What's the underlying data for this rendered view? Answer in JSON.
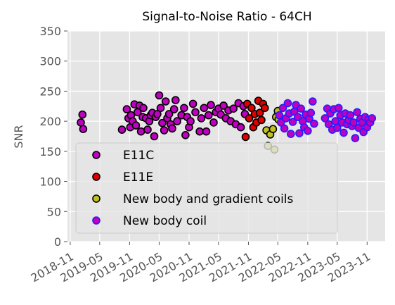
{
  "chart_data": {
    "type": "scatter",
    "title": "Signal-to-Noise Ratio - 64CH",
    "xlabel": "",
    "ylabel": "SNR",
    "ylim": [
      0,
      350
    ],
    "yticks": [
      0,
      50,
      100,
      150,
      200,
      250,
      300,
      350
    ],
    "xlim": [
      "2018-10-15",
      "2024-02-20"
    ],
    "xticks": [
      "2018-11",
      "2019-05",
      "2019-11",
      "2020-05",
      "2020-11",
      "2021-05",
      "2021-11",
      "2022-05",
      "2022-11",
      "2023-05",
      "2023-11"
    ],
    "grid": true,
    "legend_position": "lower-left",
    "background": "#e5e5e5",
    "series": [
      {
        "name": "E11C",
        "color": "#c000c0",
        "edge": "#000000",
        "points": [
          [
            "2019-01-05",
            198
          ],
          [
            "2019-01-15",
            211
          ],
          [
            "2019-01-20",
            187
          ],
          [
            "2019-09-15",
            186
          ],
          [
            "2019-10-15",
            220
          ],
          [
            "2019-10-25",
            205
          ],
          [
            "2019-11-05",
            190
          ],
          [
            "2019-11-10",
            210
          ],
          [
            "2019-11-20",
            200
          ],
          [
            "2019-12-01",
            228
          ],
          [
            "2019-12-10",
            193
          ],
          [
            "2019-12-20",
            215
          ],
          [
            "2020-01-01",
            226
          ],
          [
            "2020-01-10",
            183
          ],
          [
            "2020-01-20",
            207
          ],
          [
            "2020-01-25",
            222
          ],
          [
            "2020-02-10",
            205
          ],
          [
            "2020-02-20",
            186
          ],
          [
            "2020-03-01",
            200
          ],
          [
            "2020-03-10",
            210
          ],
          [
            "2020-03-20",
            214
          ],
          [
            "2020-04-01",
            175
          ],
          [
            "2020-04-10",
            207
          ],
          [
            "2020-04-20",
            212
          ],
          [
            "2020-05-01",
            243
          ],
          [
            "2020-05-10",
            222
          ],
          [
            "2020-05-20",
            197
          ],
          [
            "2020-06-01",
            185
          ],
          [
            "2020-06-10",
            233
          ],
          [
            "2020-06-20",
            205
          ],
          [
            "2020-07-01",
            212
          ],
          [
            "2020-07-10",
            195
          ],
          [
            "2020-07-20",
            188
          ],
          [
            "2020-08-01",
            220
          ],
          [
            "2020-08-10",
            235
          ],
          [
            "2020-08-20",
            200
          ],
          [
            "2020-09-15",
            210
          ],
          [
            "2020-10-01",
            222
          ],
          [
            "2020-10-10",
            177
          ],
          [
            "2020-10-20",
            207
          ],
          [
            "2020-11-01",
            190
          ],
          [
            "2020-11-10",
            200
          ],
          [
            "2020-11-25",
            229
          ],
          [
            "2020-12-10",
            215
          ],
          [
            "2021-01-05",
            183
          ],
          [
            "2021-01-15",
            205
          ],
          [
            "2021-02-01",
            222
          ],
          [
            "2021-02-15",
            183
          ],
          [
            "2021-03-01",
            210
          ],
          [
            "2021-03-15",
            227
          ],
          [
            "2021-04-01",
            198
          ],
          [
            "2021-04-15",
            215
          ],
          [
            "2021-05-01",
            221
          ],
          [
            "2021-05-15",
            211
          ],
          [
            "2021-06-01",
            226
          ],
          [
            "2021-06-15",
            205
          ],
          [
            "2021-07-01",
            218
          ],
          [
            "2021-07-15",
            200
          ],
          [
            "2021-08-01",
            221
          ],
          [
            "2021-08-15",
            195
          ],
          [
            "2021-09-01",
            230
          ],
          [
            "2021-09-15",
            190
          ],
          [
            "2021-10-01",
            225
          ],
          [
            "2021-10-10",
            212
          ]
        ]
      },
      {
        "name": "E11E",
        "color": "#e00000",
        "edge": "#000000",
        "points": [
          [
            "2021-10-15",
            174
          ],
          [
            "2021-10-25",
            229
          ],
          [
            "2021-11-05",
            205
          ],
          [
            "2021-11-20",
            222
          ],
          [
            "2021-12-01",
            190
          ],
          [
            "2021-12-10",
            212
          ],
          [
            "2021-12-20",
            198
          ],
          [
            "2022-01-01",
            234
          ],
          [
            "2022-01-10",
            214
          ],
          [
            "2022-01-20",
            202
          ],
          [
            "2022-01-30",
            229
          ],
          [
            "2022-02-10",
            222
          ]
        ]
      },
      {
        "name": "New body and gradient coils",
        "color": "#c0c020",
        "edge": "#000000",
        "points": [
          [
            "2022-02-20",
            185
          ],
          [
            "2022-03-01",
            159
          ],
          [
            "2022-03-15",
            178
          ],
          [
            "2022-04-01",
            187
          ],
          [
            "2022-04-10",
            153
          ],
          [
            "2022-04-20",
            207
          ],
          [
            "2022-05-01",
            217
          ],
          [
            "2022-05-05",
            203
          ]
        ]
      },
      {
        "name": "New body coil",
        "color": "#c000c0",
        "edge": "#2020ff",
        "points": [
          [
            "2022-05-10",
            210
          ],
          [
            "2022-05-20",
            198
          ],
          [
            "2022-06-01",
            222
          ],
          [
            "2022-06-10",
            188
          ],
          [
            "2022-06-20",
            205
          ],
          [
            "2022-07-01",
            230
          ],
          [
            "2022-07-10",
            213
          ],
          [
            "2022-07-20",
            179
          ],
          [
            "2022-08-01",
            199
          ],
          [
            "2022-08-10",
            216
          ],
          [
            "2022-08-20",
            227
          ],
          [
            "2022-09-01",
            207
          ],
          [
            "2022-09-10",
            180
          ],
          [
            "2022-09-20",
            221
          ],
          [
            "2022-10-01",
            200
          ],
          [
            "2022-10-10",
            190
          ],
          [
            "2022-10-20",
            211
          ],
          [
            "2022-11-01",
            184
          ],
          [
            "2022-11-10",
            204
          ],
          [
            "2022-11-20",
            214
          ],
          [
            "2022-12-01",
            233
          ],
          [
            "2022-12-10",
            196
          ],
          [
            "2023-02-15",
            205
          ],
          [
            "2023-03-01",
            221
          ],
          [
            "2023-03-10",
            195
          ],
          [
            "2023-03-20",
            213
          ],
          [
            "2023-04-01",
            186
          ],
          [
            "2023-04-10",
            220
          ],
          [
            "2023-04-20",
            200
          ],
          [
            "2023-05-01",
            189
          ],
          [
            "2023-05-10",
            222
          ],
          [
            "2023-05-20",
            210
          ],
          [
            "2023-06-01",
            198
          ],
          [
            "2023-06-10",
            181
          ],
          [
            "2023-06-20",
            213
          ],
          [
            "2023-07-01",
            195
          ],
          [
            "2023-07-10",
            202
          ],
          [
            "2023-07-20",
            210
          ],
          [
            "2023-08-01",
            192
          ],
          [
            "2023-08-10",
            198
          ],
          [
            "2023-08-20",
            172
          ],
          [
            "2023-09-01",
            215
          ],
          [
            "2023-09-10",
            189
          ],
          [
            "2023-09-20",
            204
          ],
          [
            "2023-10-01",
            198
          ],
          [
            "2023-10-10",
            182
          ],
          [
            "2023-10-20",
            207
          ],
          [
            "2023-11-01",
            190
          ],
          [
            "2023-11-10",
            203
          ],
          [
            "2023-11-20",
            198
          ],
          [
            "2023-12-01",
            205
          ]
        ]
      }
    ]
  }
}
